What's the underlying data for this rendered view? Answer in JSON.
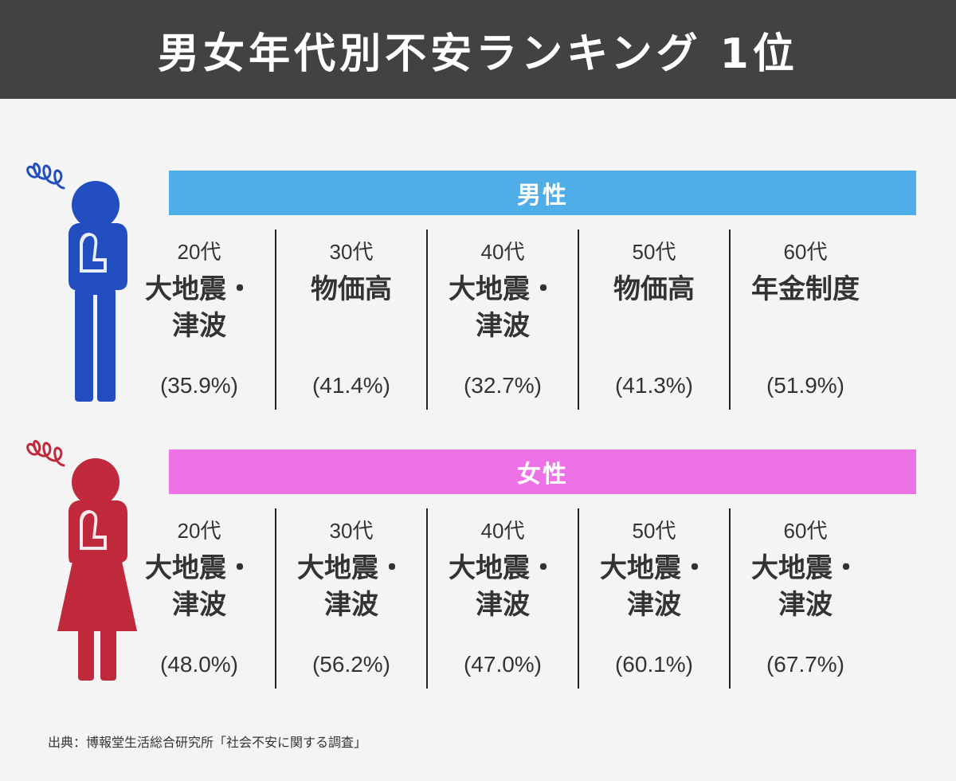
{
  "title": "男女年代別不安ランキング 1位",
  "colors": {
    "header_bg": "#424242",
    "male_band": "#4faee8",
    "female_band": "#ec72e6",
    "male_figure": "#234ebf",
    "female_figure": "#c0283c",
    "text": "#333333"
  },
  "chart_data": {
    "type": "table",
    "title": "男女年代別不安ランキング 1位",
    "categories": [
      "20代",
      "30代",
      "40代",
      "50代",
      "60代"
    ],
    "series": [
      {
        "name": "男性",
        "labels": [
          "大地震・津波",
          "物価高",
          "大地震・津波",
          "物価高",
          "年金制度"
        ],
        "values": [
          35.9,
          41.4,
          32.7,
          41.3,
          51.9
        ]
      },
      {
        "name": "女性",
        "labels": [
          "大地震・津波",
          "大地震・津波",
          "大地震・津波",
          "大地震・津波",
          "大地震・津波"
        ],
        "values": [
          48.0,
          56.2,
          47.0,
          60.1,
          67.7
        ]
      }
    ]
  },
  "sections": [
    {
      "key": "male",
      "label": "男性",
      "cells": [
        {
          "age": "20代",
          "label": "大地震・津波",
          "pct": "(35.9%)"
        },
        {
          "age": "30代",
          "label": "物価高",
          "pct": "(41.4%)"
        },
        {
          "age": "40代",
          "label": "大地震・津波",
          "pct": "(32.7%)"
        },
        {
          "age": "50代",
          "label": "物価高",
          "pct": "(41.3%)"
        },
        {
          "age": "60代",
          "label": "年金制度",
          "pct": "(51.9%)"
        }
      ]
    },
    {
      "key": "female",
      "label": "女性",
      "cells": [
        {
          "age": "20代",
          "label": "大地震・津波",
          "pct": "(48.0%)"
        },
        {
          "age": "30代",
          "label": "大地震・津波",
          "pct": "(56.2%)"
        },
        {
          "age": "40代",
          "label": "大地震・津波",
          "pct": "(47.0%)"
        },
        {
          "age": "50代",
          "label": "大地震・津波",
          "pct": "(60.1%)"
        },
        {
          "age": "60代",
          "label": "大地震・津波",
          "pct": "(67.7%)"
        }
      ]
    }
  ],
  "source": "出典：博報堂生活総合研究所「社会不安に関する調査」",
  "icons": [
    "worried-man-icon",
    "worried-woman-icon",
    "swirl-icon"
  ]
}
